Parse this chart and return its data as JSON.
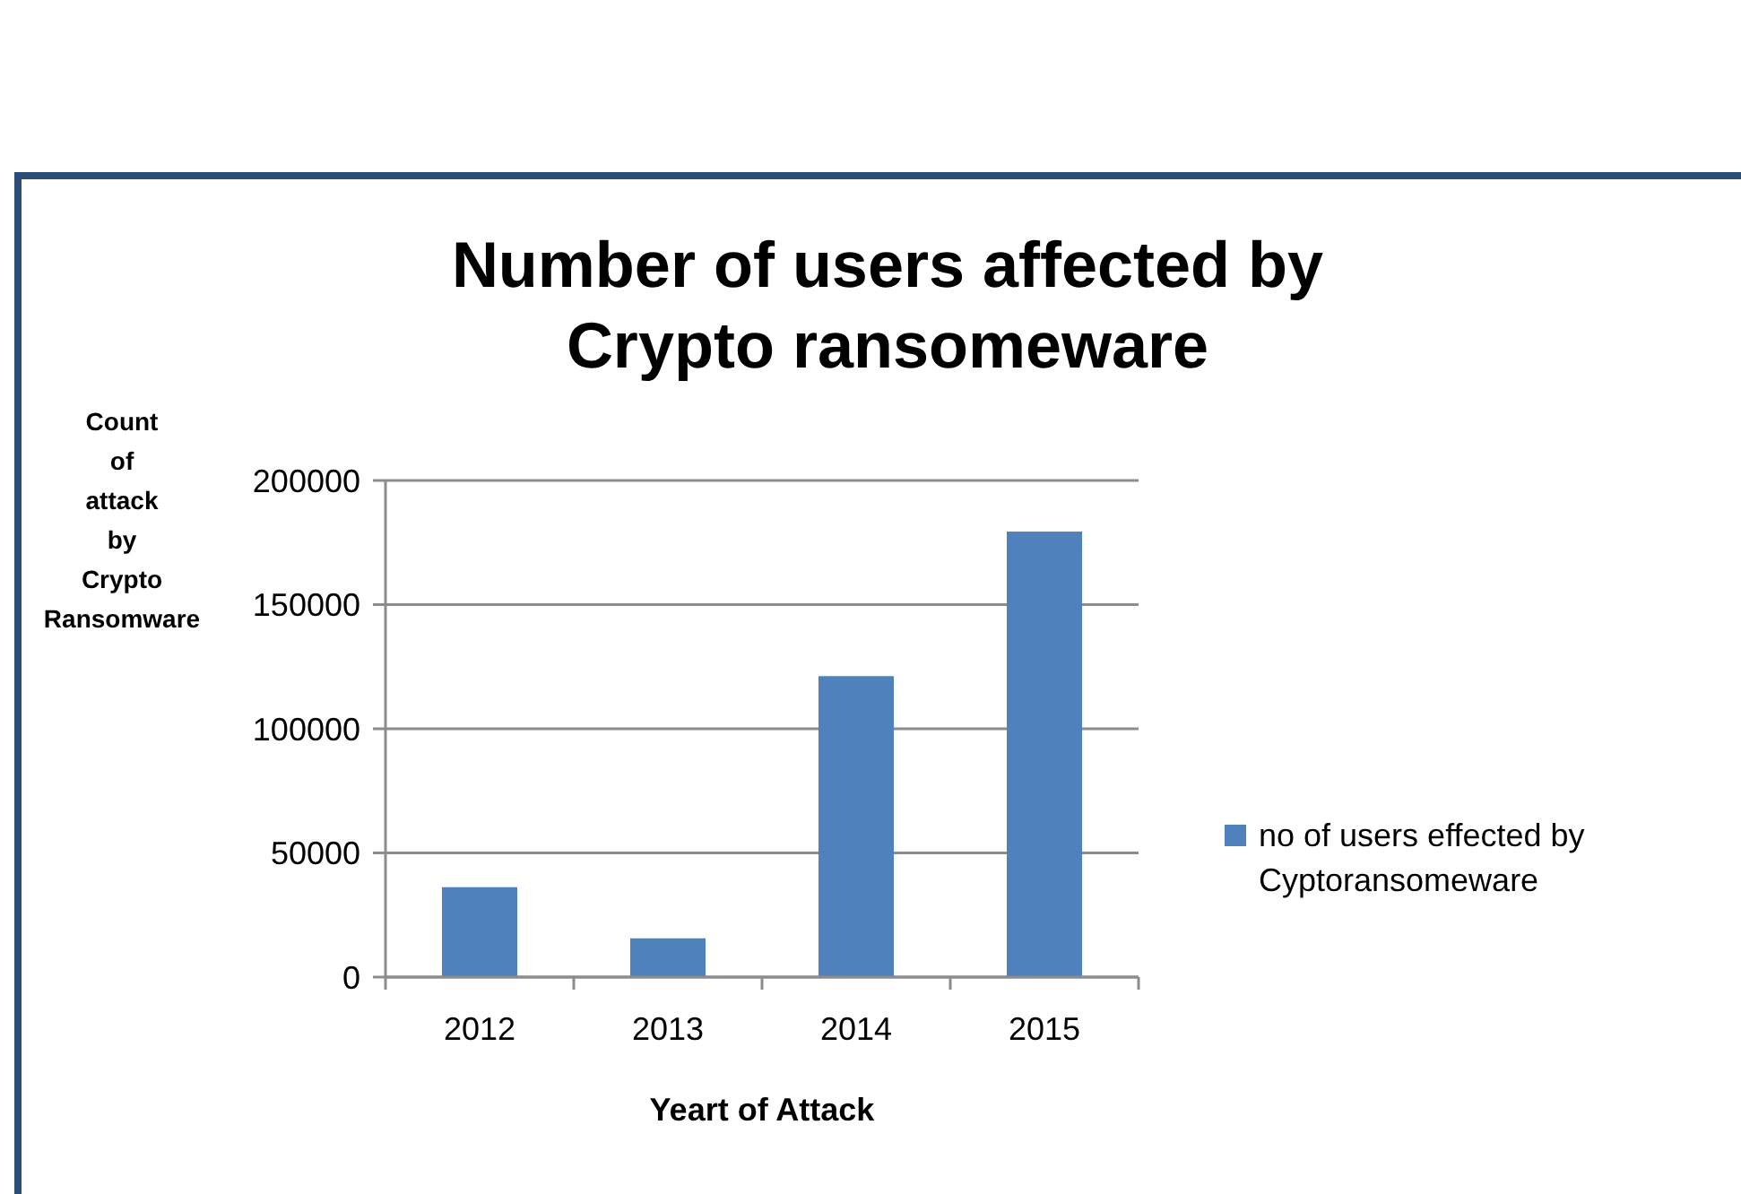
{
  "chart_data": {
    "type": "bar",
    "title": "Number of users affected by Crypto ransomeware",
    "xlabel": "Yeart of Attack",
    "ylabel": "Count of attack by Crypto Ransomware",
    "categories": [
      "2012",
      "2013",
      "2014",
      "2015"
    ],
    "series": [
      {
        "name": "no of users effected by Cyptoransomeware",
        "color": "#4f81bd",
        "values": [
          36200,
          15600,
          121200,
          179400
        ]
      }
    ],
    "ylim": [
      0,
      200000
    ],
    "yticks": [
      0,
      50000,
      100000,
      150000,
      200000
    ],
    "grid": "y",
    "legend": "right"
  }
}
